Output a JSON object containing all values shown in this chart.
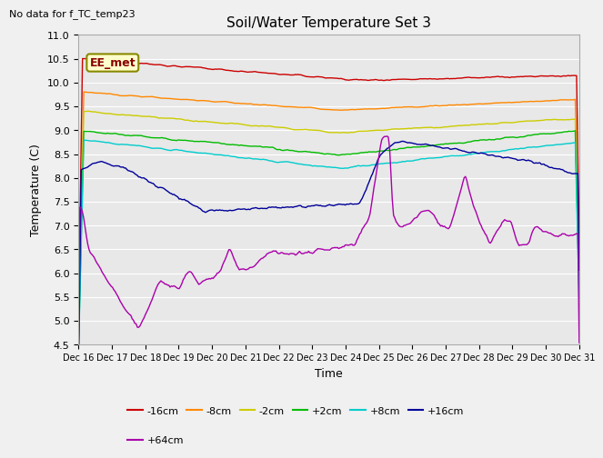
{
  "title": "Soil/Water Temperature Set 3",
  "no_data_label": "No data for f_TC_temp23",
  "ylabel": "Temperature (C)",
  "xlabel": "Time",
  "box_label": "EE_met",
  "ylim": [
    4.5,
    11.0
  ],
  "yticks": [
    4.5,
    5.0,
    5.5,
    6.0,
    6.5,
    7.0,
    7.5,
    8.0,
    8.5,
    9.0,
    9.5,
    10.0,
    10.5,
    11.0
  ],
  "xtick_labels": [
    "Dec 16",
    "Dec 17",
    "Dec 18",
    "Dec 19",
    "Dec 20",
    "Dec 21",
    "Dec 22",
    "Dec 23",
    "Dec 24",
    "Dec 25",
    "Dec 26",
    "Dec 27",
    "Dec 28",
    "Dec 29",
    "Dec 30",
    "Dec 31"
  ],
  "fig_bg_color": "#f0f0f0",
  "plot_bg_color": "#e8e8e8",
  "series_colors": [
    "#cc0000",
    "#ff8800",
    "#cccc00",
    "#00bb00",
    "#00cccc",
    "#000099",
    "#aa00aa"
  ],
  "series_labels": [
    "-16cm",
    "-8cm",
    "-2cm",
    "+2cm",
    "+8cm",
    "+16cm",
    "+64cm"
  ],
  "grid_color": "#ffffff",
  "title_fontsize": 11,
  "label_fontsize": 9,
  "tick_fontsize": 8,
  "xtick_fontsize": 7
}
